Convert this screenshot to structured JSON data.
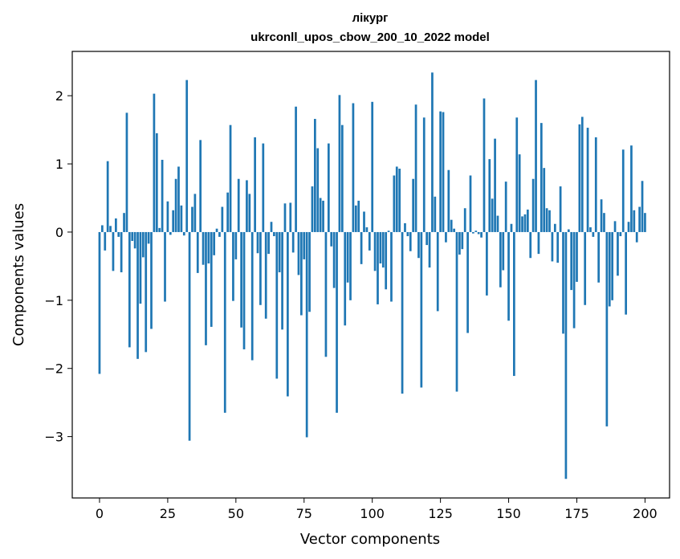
{
  "chart_data": {
    "type": "bar",
    "title": "лікург",
    "subtitle": "ukrconll_upos_cbow_200_10_2022 model",
    "xlabel": "Vector components",
    "ylabel": "Components values",
    "xlim": [
      -10,
      209
    ],
    "ylim": [
      -3.9,
      2.65
    ],
    "xticks": [
      0,
      25,
      50,
      75,
      100,
      125,
      150,
      175,
      200
    ],
    "xtick_labels": [
      "0",
      "25",
      "50",
      "75",
      "100",
      "125",
      "150",
      "175",
      "200"
    ],
    "yticks": [
      -3,
      -2,
      -1,
      0,
      1,
      2
    ],
    "ytick_labels": [
      "−3",
      "−2",
      "−1",
      "0",
      "1",
      "2"
    ],
    "grid": false,
    "bar_color": "#1f77b4",
    "values": [
      -2.08,
      0.1,
      -0.27,
      1.04,
      0.09,
      -0.57,
      0.2,
      -0.07,
      -0.59,
      0.28,
      1.75,
      -1.69,
      -0.13,
      -0.24,
      -1.86,
      -1.05,
      -0.37,
      -1.76,
      -0.17,
      -1.42,
      2.03,
      1.45,
      0.06,
      1.06,
      -1.02,
      0.45,
      -0.04,
      0.32,
      0.78,
      0.96,
      0.39,
      -0.05,
      2.23,
      -3.06,
      0.37,
      0.56,
      -0.6,
      1.35,
      -0.48,
      -1.66,
      -0.46,
      -1.39,
      -0.34,
      0.05,
      -0.07,
      0.37,
      -2.65,
      0.58,
      1.57,
      -1.01,
      -0.4,
      0.78,
      -1.4,
      -1.72,
      0.76,
      0.56,
      -1.88,
      1.39,
      -0.31,
      -1.07,
      1.3,
      -1.27,
      -0.32,
      0.15,
      -0.06,
      -2.15,
      -0.59,
      -1.43,
      0.42,
      -2.41,
      0.43,
      -0.3,
      1.84,
      -0.63,
      -1.22,
      -0.4,
      -3.01,
      -1.17,
      0.67,
      1.66,
      1.23,
      0.5,
      0.46,
      -1.83,
      1.3,
      -0.21,
      -0.82,
      -2.65,
      2.01,
      1.57,
      -1.37,
      -0.74,
      -1.0,
      1.89,
      0.39,
      0.46,
      -0.47,
      0.3,
      0.07,
      -0.27,
      1.91,
      -0.57,
      -1.06,
      -0.46,
      -0.52,
      -0.84,
      0.02,
      -1.02,
      0.83,
      0.96,
      0.93,
      -2.37,
      0.13,
      -0.06,
      -0.28,
      0.78,
      1.87,
      -0.38,
      -2.28,
      1.68,
      -0.19,
      -0.52,
      2.34,
      0.52,
      -1.16,
      1.77,
      1.76,
      -0.15,
      0.91,
      0.18,
      0.05,
      -2.34,
      -0.33,
      -0.25,
      0.35,
      -1.48,
      0.83,
      -0.02,
      0.02,
      -0.03,
      -0.08,
      1.96,
      -0.93,
      1.07,
      0.49,
      1.37,
      0.24,
      -0.81,
      -0.56,
      0.74,
      -1.3,
      0.12,
      -2.11,
      1.68,
      1.14,
      0.23,
      0.26,
      0.33,
      -0.38,
      0.78,
      2.23,
      -0.32,
      1.6,
      0.94,
      0.35,
      0.32,
      -0.43,
      0.12,
      -0.45,
      0.67,
      -1.49,
      -3.62,
      0.04,
      -0.85,
      -1.41,
      -0.73,
      1.58,
      1.69,
      -1.07,
      1.53,
      0.07,
      -0.07,
      1.39,
      -0.74,
      0.48,
      0.28,
      -2.85,
      -1.09,
      -1.0,
      0.16,
      -0.64,
      -0.06,
      1.21,
      -1.21,
      0.15,
      1.27,
      0.32,
      -0.15,
      0.37,
      0.75,
      0.28
    ]
  }
}
